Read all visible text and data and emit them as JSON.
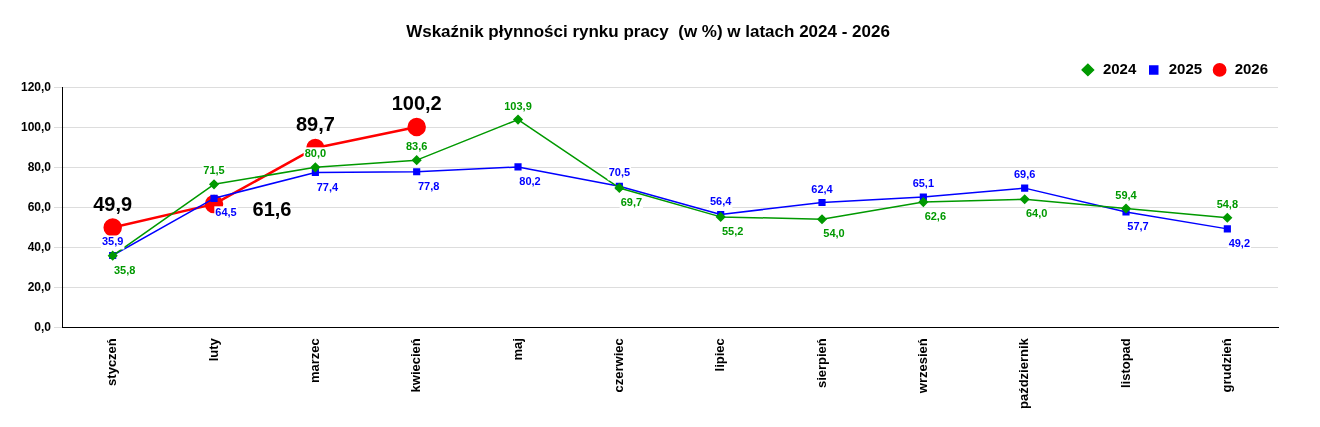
{
  "chart_data": {
    "type": "line",
    "title": "Wskaźnik płynności rynku pracy  (w %) w latach 2024 - 2026",
    "categories": [
      "styczeń",
      "luty",
      "marzec",
      "kwiecień",
      "maj",
      "czerwiec",
      "lipiec",
      "sierpień",
      "wrzesień",
      "październik",
      "listopad",
      "grudzień"
    ],
    "series": [
      {
        "name": "2024",
        "color": "#009900",
        "marker": "diamond",
        "values": [
          35.8,
          71.5,
          80.0,
          83.6,
          103.9,
          69.7,
          55.2,
          54.0,
          62.6,
          64.0,
          59.4,
          54.8
        ],
        "value_labels": [
          "35,8",
          "71,5",
          "80,0",
          "83,6",
          "103,9",
          "69,7",
          "55,2",
          "54,0",
          "62,6",
          "64,0",
          "59,4",
          "54,8"
        ]
      },
      {
        "name": "2025",
        "color": "#0000ff",
        "marker": "square",
        "values": [
          35.9,
          64.5,
          77.4,
          77.8,
          80.2,
          70.5,
          56.4,
          62.4,
          65.1,
          69.6,
          57.7,
          49.2
        ],
        "value_labels": [
          "35,9",
          "64,5",
          "77,4",
          "77,8",
          "80,2",
          "70,5",
          "56,4",
          "62,4",
          "65,1",
          "69,6",
          "57,7",
          "49,2"
        ]
      },
      {
        "name": "2026",
        "color": "#ff0000",
        "marker": "circle",
        "values": [
          49.9,
          61.6,
          89.7,
          100.2,
          null,
          null,
          null,
          null,
          null,
          null,
          null,
          null
        ],
        "value_labels": [
          "49,9",
          "61,6",
          "89,7",
          "100,2",
          null,
          null,
          null,
          null,
          null,
          null,
          null,
          null
        ]
      }
    ],
    "ylim": [
      0,
      120
    ],
    "yticks": [
      {
        "value": 0,
        "label": "0,0"
      },
      {
        "value": 20,
        "label": "20,0"
      },
      {
        "value": 40,
        "label": "40,0"
      },
      {
        "value": 60,
        "label": "60,0"
      },
      {
        "value": 80,
        "label": "80,0"
      },
      {
        "value": 100,
        "label": "100,0"
      },
      {
        "value": 120,
        "label": "120,0"
      }
    ],
    "grid": "y",
    "legend": "top right"
  }
}
